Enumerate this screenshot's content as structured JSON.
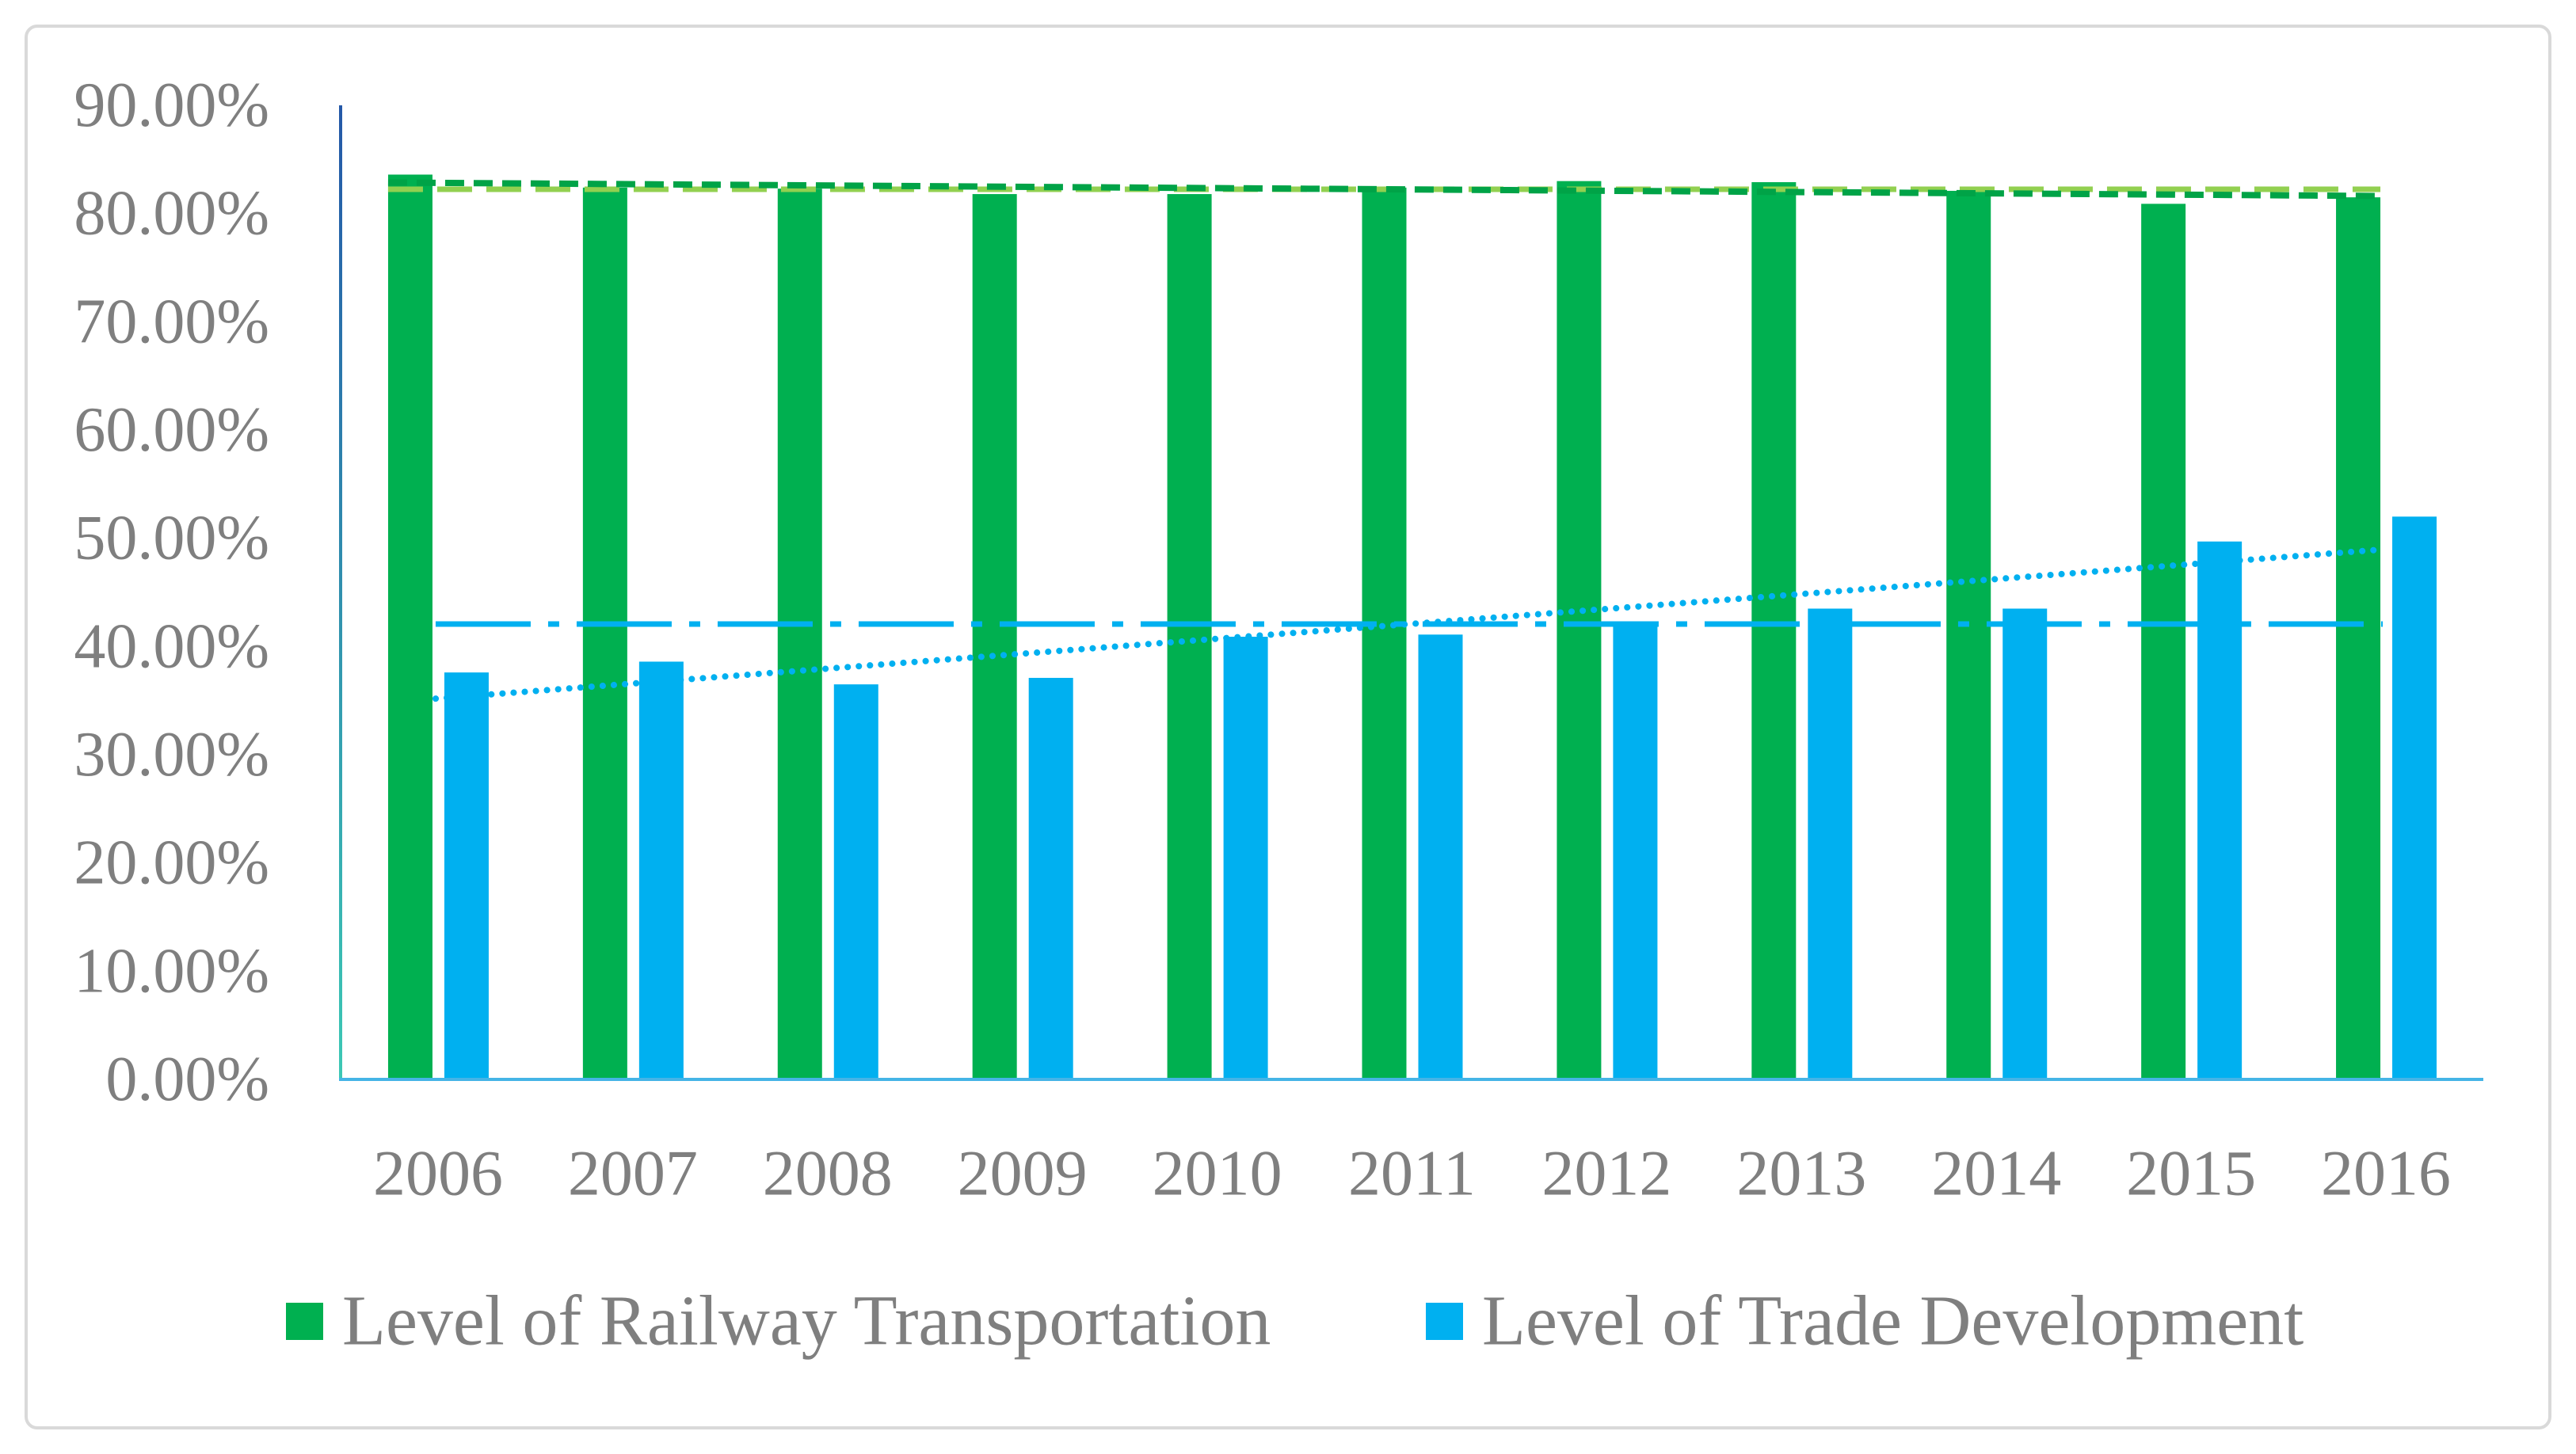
{
  "chart_data": {
    "type": "bar",
    "categories": [
      "2006",
      "2007",
      "2008",
      "2009",
      "2010",
      "2011",
      "2012",
      "2013",
      "2014",
      "2015",
      "2016"
    ],
    "series": [
      {
        "name": "Level of Railway Transportation",
        "values": [
          83.6,
          82.4,
          82.3,
          81.8,
          81.8,
          82.4,
          83.0,
          82.9,
          82.1,
          80.9,
          81.5
        ],
        "color": "#00B050"
      },
      {
        "name": "Level of Trade Development",
        "values": [
          37.6,
          38.6,
          36.5,
          37.1,
          40.9,
          41.1,
          42.3,
          43.5,
          43.5,
          49.7,
          52.0
        ],
        "color": "#00B0F0"
      }
    ],
    "ylim": [
      0,
      90
    ],
    "y_ticks": [
      0,
      10,
      20,
      30,
      40,
      50,
      60,
      70,
      80,
      90
    ],
    "y_tick_labels": [
      "0.00%",
      "10.00%",
      "20.00%",
      "30.00%",
      "40.00%",
      "50.00%",
      "60.00%",
      "70.00%",
      "80.00%",
      "90.00%"
    ],
    "grid": false,
    "legend": "bottom",
    "trendlines": [
      {
        "series": 0,
        "color": "#00A347"
      },
      {
        "series": 1,
        "color": "#00B0F0"
      }
    ],
    "mean_lines": [
      {
        "series": 0,
        "color": "#92D050"
      },
      {
        "series": 1,
        "color": "#00B0F0"
      }
    ]
  },
  "colors": {
    "text": "#7F7F7F",
    "frame": "#D9D9D9",
    "x_axis": "#45B4E6",
    "y_axis_top": "#2458A8",
    "y_axis_bottom": "#3CC8B4"
  }
}
